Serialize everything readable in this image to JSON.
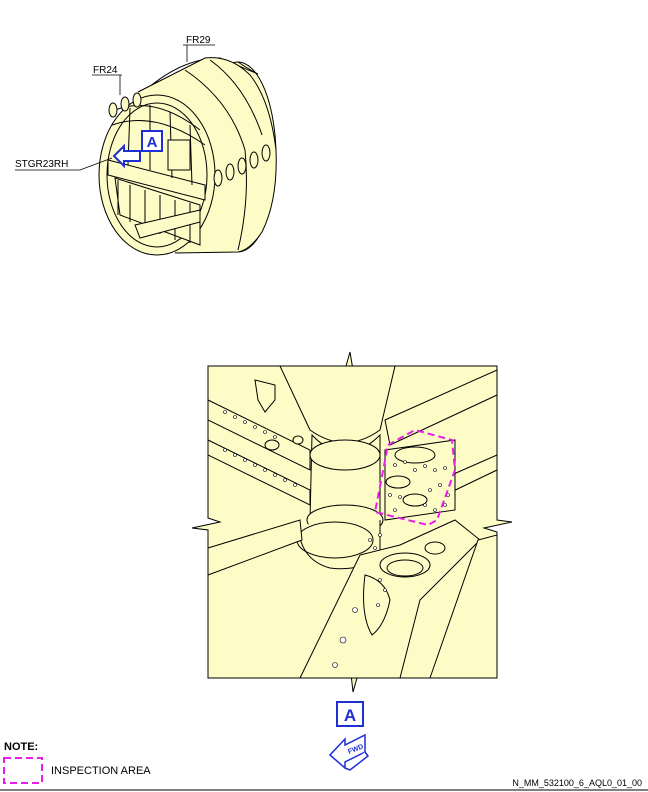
{
  "labels": {
    "fr29": "FR29",
    "fr24": "FR24",
    "stgr": "STGR23RH",
    "view_letter": "A",
    "view_letter_bottom": "A",
    "fwd": "FWD"
  },
  "note": {
    "title": "NOTE:",
    "legend": "INSPECTION AREA"
  },
  "figure_id": "N_MM_532100_6_AQL0_01_00",
  "colors": {
    "fill": "#fdfcc6",
    "inspection": "#e81ee8",
    "marker": "#1f2fd6"
  }
}
